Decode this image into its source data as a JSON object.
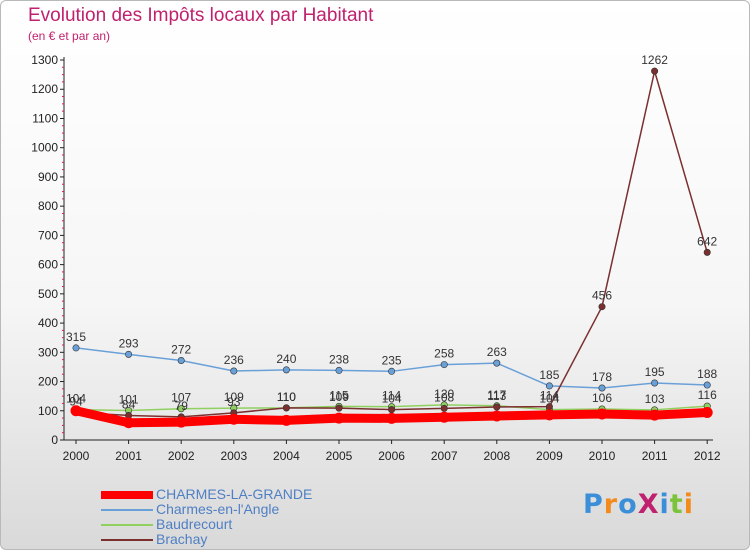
{
  "header": {
    "title": "Evolution des Impôts locaux par Habitant",
    "subtitle": "(en € et par an)"
  },
  "logo": {
    "text": "ProXiti",
    "colors": [
      "#3b8fd9",
      "#f28a1c",
      "#3b8fd9",
      "#c0216e",
      "#3b8fd9",
      "#7cc23a",
      "#f28a1c"
    ]
  },
  "chart_data": {
    "type": "line",
    "title": "Evolution des Impôts locaux par Habitant",
    "subtitle": "(en € et par an)",
    "xlabel": "",
    "ylabel": "",
    "categories": [
      "2000",
      "2001",
      "2002",
      "2003",
      "2004",
      "2005",
      "2006",
      "2007",
      "2008",
      "2009",
      "2010",
      "2011",
      "2012"
    ],
    "ylim": [
      0,
      1300
    ],
    "yticks": [
      0,
      100,
      200,
      300,
      400,
      500,
      600,
      700,
      800,
      900,
      1000,
      1100,
      1200,
      1300
    ],
    "grid": false,
    "legend_position": "bottom-left",
    "series": [
      {
        "name": "CHARMES-LA-GRANDE",
        "color": "#ff0000",
        "line_width": 9,
        "values": [
          100,
          59,
          61,
          71,
          67,
          75,
          74,
          78,
          82,
          86,
          89,
          85,
          94
        ],
        "show_labels": false
      },
      {
        "name": "Charmes-en-l'Angle",
        "color": "#6aa0d8",
        "line_width": 1.5,
        "values": [
          315,
          293,
          272,
          236,
          240,
          238,
          235,
          258,
          263,
          185,
          178,
          195,
          188
        ],
        "show_labels": true
      },
      {
        "name": "Baudrecourt",
        "color": "#90d060",
        "line_width": 1.5,
        "values": [
          104,
          101,
          107,
          109,
          110,
          115,
          114,
          120,
          117,
          104,
          106,
          103,
          116
        ],
        "show_labels": true
      },
      {
        "name": "Brachay",
        "color": "#7b2f2f",
        "line_width": 1.5,
        "values": [
          94,
          84,
          79,
          93,
          110,
          109,
          104,
          108,
          113,
          114,
          456,
          1262,
          642
        ],
        "show_labels": true
      }
    ]
  }
}
